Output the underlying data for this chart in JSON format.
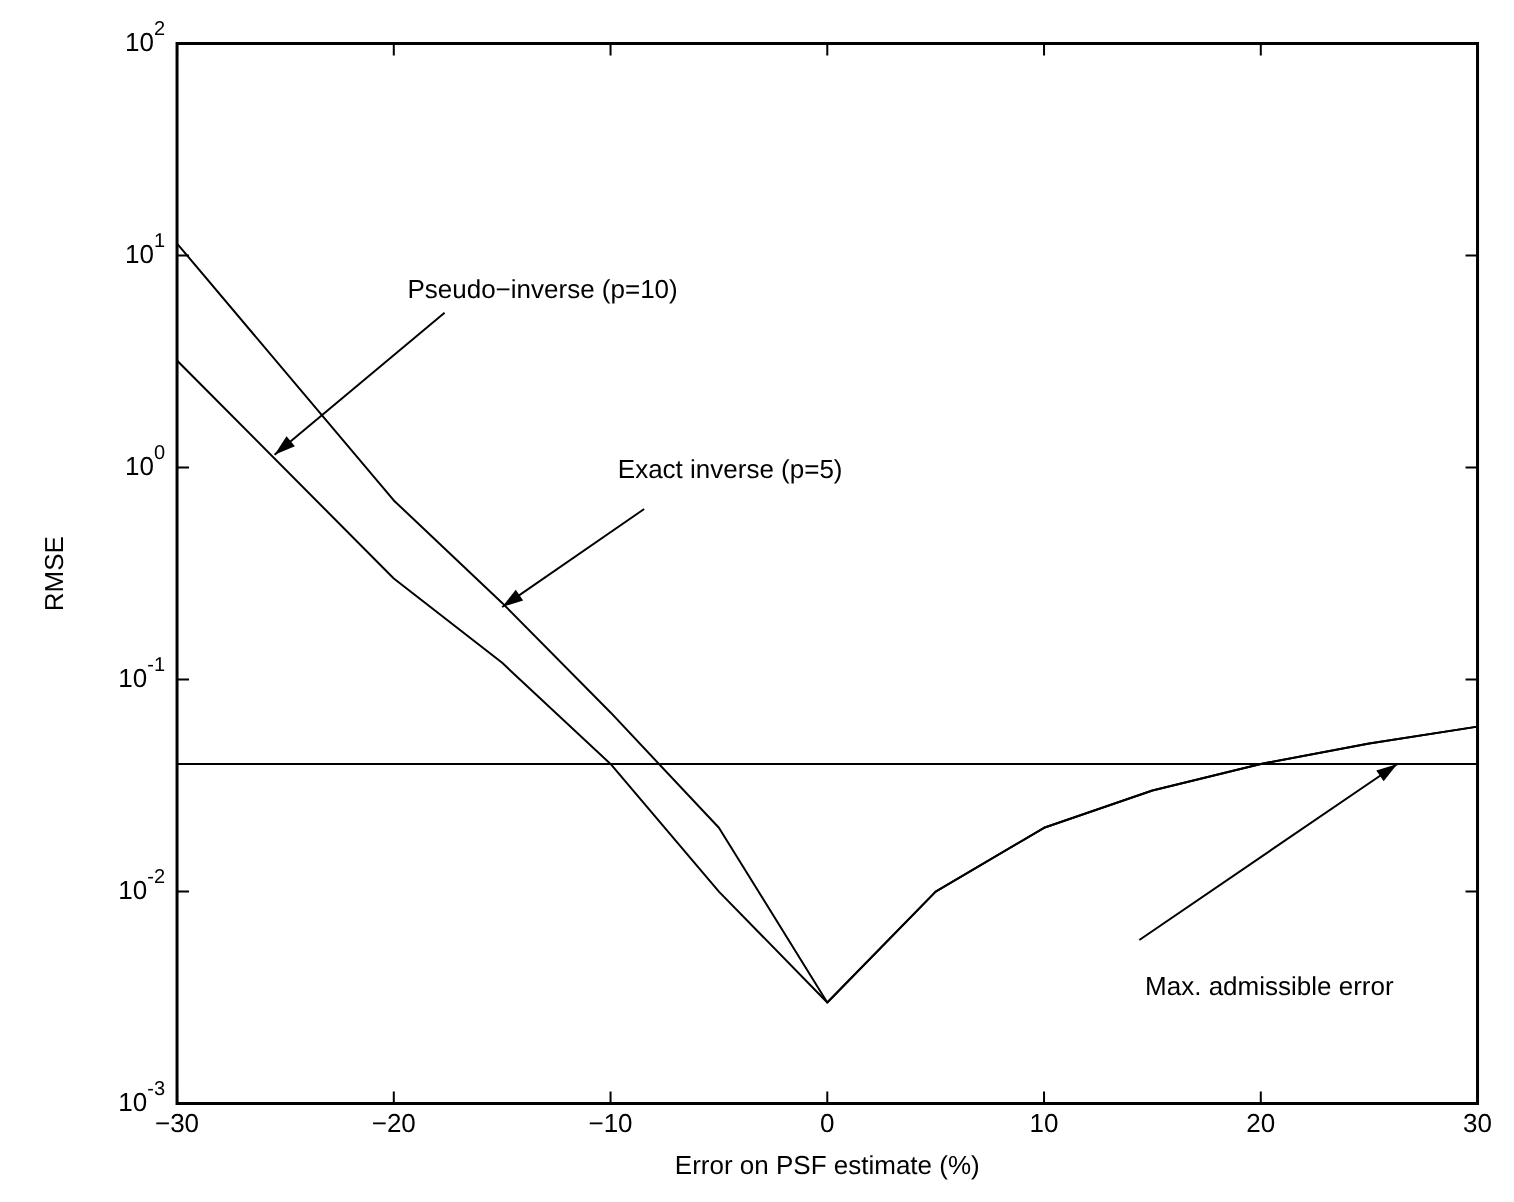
{
  "chart_data": {
    "type": "line",
    "xlabel": "Error on PSF estimate (%)",
    "ylabel": "RMSE",
    "x": [
      -30,
      -20,
      -15,
      -10,
      -5,
      0,
      5,
      10,
      15,
      20,
      25,
      30
    ],
    "series": [
      {
        "color": "#000000",
        "values": [
          11.4,
          0.7,
          0.23,
          0.07,
          0.02,
          0.003,
          0.01,
          0.02,
          0.03,
          0.04,
          0.05,
          0.06
        ]
      },
      {
        "color": "#000000",
        "values": [
          3.2,
          0.3,
          0.12,
          0.04,
          0.01,
          0.003,
          0.01,
          0.02,
          0.03,
          0.04,
          0.05,
          0.06
        ]
      }
    ],
    "log": "y",
    "xlim": [
      -30,
      30
    ],
    "xticks": [
      -30,
      -20,
      -10,
      0,
      10,
      20,
      30
    ],
    "ylim": [
      0.001,
      100
    ],
    "yticks": [
      {
        "value": 0.001,
        "label": "10$^{-3}$"
      },
      {
        "value": 0.01,
        "label": "10$^{-2}$"
      },
      {
        "value": 0.1,
        "label": "10$^{-1}$"
      },
      {
        "value": 1,
        "label": "10$^{0}$"
      },
      {
        "value": 10,
        "label": "10$^{1}$"
      },
      {
        "value": 100,
        "label": "10$^{2}$"
      }
    ],
    "ref_lines": [
      {
        "axis": "y",
        "value": 0.04,
        "color": "#000000"
      }
    ],
    "annotations": [
      {
        "text": "Pseudo−inverse (p=10)",
        "x": -25.5,
        "y": 1.15
      },
      {
        "text": "Exact inverse (p=5)",
        "x": -15,
        "y": 0.22
      },
      {
        "text": "Max. admissible error",
        "x": 26.3,
        "y": 0.04
      }
    ],
    "grid": false,
    "legend": false,
    "marker": "none",
    "line_style": "solid"
  }
}
